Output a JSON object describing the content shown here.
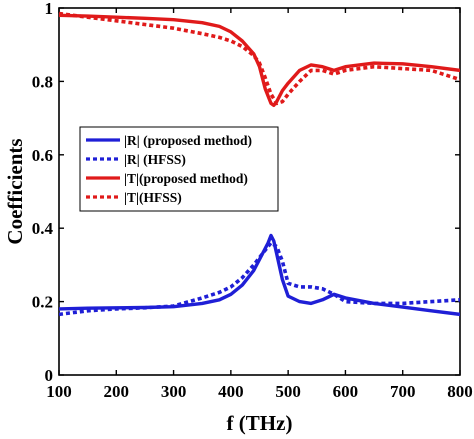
{
  "chart_data": {
    "type": "line",
    "title": "",
    "xlabel": "f (THz)",
    "ylabel": "Coefficients",
    "xlim": [
      100,
      800
    ],
    "ylim": [
      0,
      1
    ],
    "xticks": [
      100,
      200,
      300,
      400,
      500,
      600,
      700,
      800
    ],
    "yticks": [
      0,
      0.2,
      0.4,
      0.6,
      0.8,
      1
    ],
    "grid": false,
    "legend_position": "middle-left",
    "series": [
      {
        "name": "|R| (proposed method)",
        "color": "#1f1fd6",
        "style": "solid",
        "x": [
          100,
          150,
          200,
          250,
          300,
          350,
          380,
          400,
          420,
          440,
          455,
          465,
          470,
          475,
          480,
          490,
          500,
          520,
          540,
          560,
          580,
          600,
          650,
          700,
          750,
          800
        ],
        "y": [
          0.18,
          0.182,
          0.183,
          0.184,
          0.186,
          0.195,
          0.205,
          0.22,
          0.245,
          0.285,
          0.33,
          0.36,
          0.38,
          0.365,
          0.33,
          0.26,
          0.215,
          0.2,
          0.195,
          0.205,
          0.22,
          0.21,
          0.195,
          0.185,
          0.175,
          0.165
        ]
      },
      {
        "name": "|R| (HFSS)",
        "color": "#1f1fd6",
        "style": "dotted",
        "x": [
          100,
          150,
          200,
          250,
          300,
          350,
          380,
          400,
          420,
          440,
          460,
          470,
          480,
          490,
          500,
          520,
          540,
          560,
          580,
          600,
          650,
          700,
          750,
          800
        ],
        "y": [
          0.165,
          0.175,
          0.18,
          0.183,
          0.188,
          0.21,
          0.225,
          0.24,
          0.265,
          0.3,
          0.34,
          0.36,
          0.35,
          0.31,
          0.25,
          0.24,
          0.24,
          0.235,
          0.22,
          0.2,
          0.195,
          0.195,
          0.2,
          0.205
        ]
      },
      {
        "name": "|T|(proposed method)",
        "color": "#e01a1a",
        "style": "solid",
        "x": [
          100,
          150,
          200,
          250,
          300,
          350,
          380,
          400,
          420,
          440,
          450,
          460,
          470,
          475,
          480,
          490,
          500,
          520,
          540,
          560,
          580,
          600,
          650,
          700,
          750,
          800
        ],
        "y": [
          0.98,
          0.978,
          0.975,
          0.972,
          0.968,
          0.96,
          0.95,
          0.935,
          0.91,
          0.875,
          0.84,
          0.78,
          0.74,
          0.735,
          0.745,
          0.775,
          0.795,
          0.83,
          0.845,
          0.84,
          0.83,
          0.84,
          0.85,
          0.848,
          0.84,
          0.83
        ]
      },
      {
        "name": "|T|(HFSS)",
        "color": "#e01a1a",
        "style": "dotted",
        "x": [
          100,
          150,
          200,
          250,
          300,
          350,
          380,
          400,
          420,
          440,
          450,
          460,
          470,
          480,
          490,
          500,
          520,
          540,
          560,
          580,
          600,
          650,
          700,
          750,
          800
        ],
        "y": [
          0.985,
          0.975,
          0.965,
          0.955,
          0.945,
          0.93,
          0.92,
          0.91,
          0.895,
          0.87,
          0.85,
          0.81,
          0.765,
          0.74,
          0.745,
          0.765,
          0.8,
          0.83,
          0.83,
          0.82,
          0.83,
          0.84,
          0.835,
          0.83,
          0.805
        ]
      }
    ]
  }
}
